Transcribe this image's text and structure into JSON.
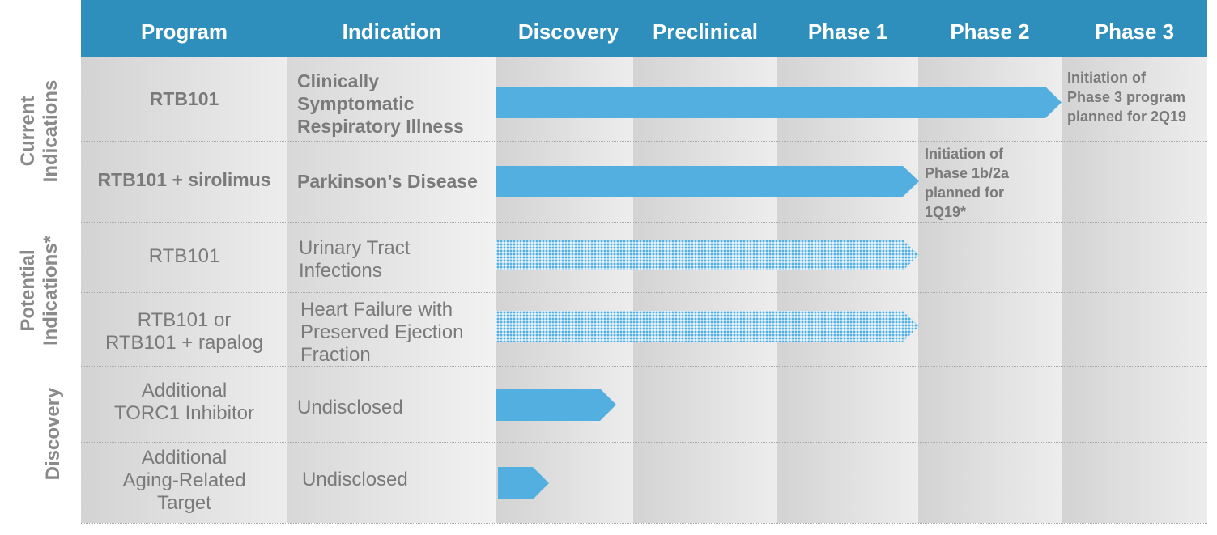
{
  "header": {
    "columns": [
      "Program",
      "Indication",
      "Discovery",
      "Preclinical",
      "Phase 1",
      "Phase 2",
      "Phase 3"
    ]
  },
  "groups": [
    {
      "lines": [
        "Current",
        "Indications"
      ]
    },
    {
      "lines": [
        "Potential",
        "Indications*"
      ]
    },
    {
      "lines": [
        "Discovery"
      ]
    }
  ],
  "rows": [
    {
      "program": [
        "RTB101"
      ],
      "indication": [
        "Clinically",
        "Symptomatic",
        "Respiratory Illness"
      ],
      "bold": true,
      "arrow_style": "solid",
      "arrow_reaches_stage": "Phase 3"
    },
    {
      "program": [
        "RTB101 + sirolimus"
      ],
      "indication": [
        "Parkinson’s Disease"
      ],
      "bold": true,
      "arrow_style": "solid",
      "arrow_reaches_stage": "Phase 2"
    },
    {
      "program": [
        "RTB101"
      ],
      "indication": [
        "Urinary Tract",
        "Infections"
      ],
      "bold": false,
      "arrow_style": "dotted",
      "arrow_reaches_stage": "Phase 2"
    },
    {
      "program": [
        "RTB101 or",
        "RTB101 + rapalog"
      ],
      "indication": [
        "Heart Failure with",
        "Preserved Ejection",
        "Fraction"
      ],
      "bold": false,
      "arrow_style": "dotted",
      "arrow_reaches_stage": "Phase 2"
    },
    {
      "program": [
        "Additional",
        "TORC1 Inhibitor"
      ],
      "indication": [
        "Undisclosed"
      ],
      "bold": false,
      "arrow_style": "solid",
      "arrow_reaches_stage": "Discovery"
    },
    {
      "program": [
        "Additional",
        "Aging-Related",
        "Target"
      ],
      "indication": [
        "Undisclosed"
      ],
      "bold": false,
      "arrow_style": "solid",
      "arrow_reaches_stage": "Discovery"
    }
  ],
  "notes": [
    {
      "lines": [
        "Initiation of",
        "Phase 3 program",
        "planned for 2Q19"
      ]
    },
    {
      "lines": [
        "Initiation of",
        "Phase 1b/2a",
        "planned for",
        "1Q19*"
      ]
    }
  ],
  "colors": {
    "header": "#2f8fbc",
    "arrow": "#52afe0",
    "text": "#7a7a7a",
    "group_label": "#8a8a8a"
  }
}
